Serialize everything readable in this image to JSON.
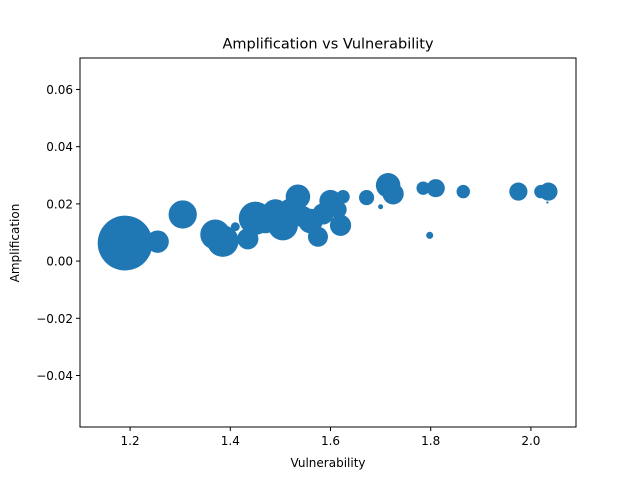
{
  "chart_data": {
    "type": "scatter",
    "title": "Amplification vs Vulnerability",
    "xlabel": "Vulnerability",
    "ylabel": "Amplification",
    "xlim": [
      1.1,
      2.09
    ],
    "ylim": [
      -0.058,
      0.071
    ],
    "xticks": [
      1.2,
      1.4,
      1.6,
      1.8,
      2.0
    ],
    "xtick_labels": [
      "1.2",
      "1.4",
      "1.6",
      "1.8",
      "2.0"
    ],
    "yticks": [
      -0.04,
      -0.02,
      0.0,
      0.02,
      0.04,
      0.06
    ],
    "ytick_labels": [
      "−0.04",
      "−0.02",
      "0.00",
      "0.02",
      "0.04",
      "0.06"
    ],
    "grid": false,
    "color": "#1f77b4",
    "points": [
      {
        "x": 1.19,
        "y": 0.0063,
        "size": 3000
      },
      {
        "x": 1.255,
        "y": 0.0068,
        "size": 500
      },
      {
        "x": 1.305,
        "y": 0.0163,
        "size": 800
      },
      {
        "x": 1.37,
        "y": 0.0093,
        "size": 900
      },
      {
        "x": 1.385,
        "y": 0.007,
        "size": 1000
      },
      {
        "x": 1.41,
        "y": 0.012,
        "size": 80
      },
      {
        "x": 1.435,
        "y": 0.0078,
        "size": 450
      },
      {
        "x": 1.45,
        "y": 0.015,
        "size": 1100
      },
      {
        "x": 1.47,
        "y": 0.014,
        "size": 600
      },
      {
        "x": 1.49,
        "y": 0.017,
        "size": 700
      },
      {
        "x": 1.505,
        "y": 0.0125,
        "size": 900
      },
      {
        "x": 1.52,
        "y": 0.018,
        "size": 500
      },
      {
        "x": 1.535,
        "y": 0.0225,
        "size": 600
      },
      {
        "x": 1.545,
        "y": 0.0155,
        "size": 450
      },
      {
        "x": 1.56,
        "y": 0.014,
        "size": 600
      },
      {
        "x": 1.575,
        "y": 0.0085,
        "size": 400
      },
      {
        "x": 1.585,
        "y": 0.0165,
        "size": 450
      },
      {
        "x": 1.6,
        "y": 0.021,
        "size": 500
      },
      {
        "x": 1.615,
        "y": 0.018,
        "size": 300
      },
      {
        "x": 1.62,
        "y": 0.0125,
        "size": 450
      },
      {
        "x": 1.625,
        "y": 0.0225,
        "size": 180
      },
      {
        "x": 1.672,
        "y": 0.0222,
        "size": 230
      },
      {
        "x": 1.7,
        "y": 0.019,
        "size": 25
      },
      {
        "x": 1.715,
        "y": 0.0265,
        "size": 600
      },
      {
        "x": 1.725,
        "y": 0.0235,
        "size": 450
      },
      {
        "x": 1.785,
        "y": 0.0255,
        "size": 180
      },
      {
        "x": 1.798,
        "y": 0.009,
        "size": 50
      },
      {
        "x": 1.81,
        "y": 0.0255,
        "size": 330
      },
      {
        "x": 1.865,
        "y": 0.0243,
        "size": 180
      },
      {
        "x": 1.975,
        "y": 0.0243,
        "size": 330
      },
      {
        "x": 2.02,
        "y": 0.0243,
        "size": 180
      },
      {
        "x": 2.033,
        "y": 0.0205,
        "size": 5
      },
      {
        "x": 2.035,
        "y": 0.0243,
        "size": 330
      }
    ]
  }
}
